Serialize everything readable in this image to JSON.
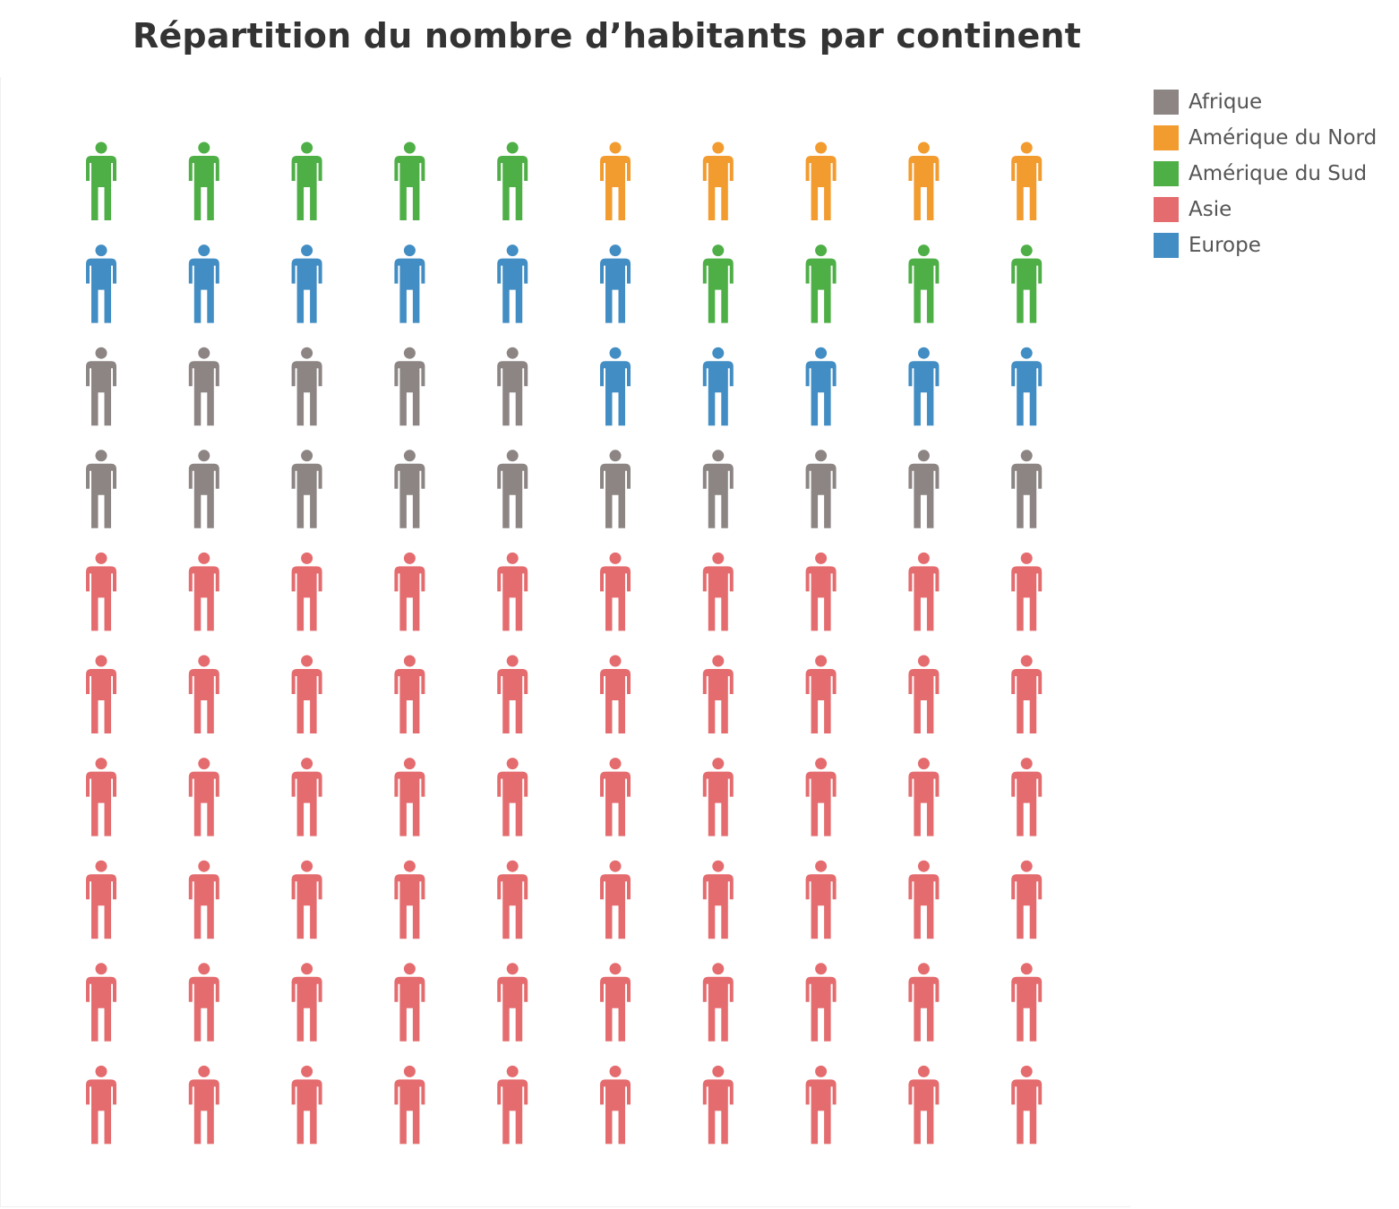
{
  "chart_data": {
    "type": "pictogram",
    "title": "Répartition du nombre d’habitants par continent",
    "unit_icon": "person-icon",
    "grid": {
      "rows": 10,
      "cols": 10
    },
    "legend_position": "top-right",
    "legend": [
      {
        "name": "Afrique",
        "color": "#8c8584"
      },
      {
        "name": "Amérique du Nord",
        "color": "#f29b2f"
      },
      {
        "name": "Amérique du Sud",
        "color": "#4faf47"
      },
      {
        "name": "Asie",
        "color": "#e46c6f"
      },
      {
        "name": "Europe",
        "color": "#428dc3"
      }
    ],
    "series": [
      {
        "name": "Afrique",
        "value": 15
      },
      {
        "name": "Amérique du Nord",
        "value": 5
      },
      {
        "name": "Amérique du Sud",
        "value": 9
      },
      {
        "name": "Asie",
        "value": 60
      },
      {
        "name": "Europe",
        "value": 11
      }
    ],
    "rows": [
      [
        "Amérique du Sud",
        "Amérique du Sud",
        "Amérique du Sud",
        "Amérique du Sud",
        "Amérique du Sud",
        "Amérique du Nord",
        "Amérique du Nord",
        "Amérique du Nord",
        "Amérique du Nord",
        "Amérique du Nord"
      ],
      [
        "Europe",
        "Europe",
        "Europe",
        "Europe",
        "Europe",
        "Europe",
        "Amérique du Sud",
        "Amérique du Sud",
        "Amérique du Sud",
        "Amérique du Sud"
      ],
      [
        "Afrique",
        "Afrique",
        "Afrique",
        "Afrique",
        "Afrique",
        "Europe",
        "Europe",
        "Europe",
        "Europe",
        "Europe"
      ],
      [
        "Afrique",
        "Afrique",
        "Afrique",
        "Afrique",
        "Afrique",
        "Afrique",
        "Afrique",
        "Afrique",
        "Afrique",
        "Afrique"
      ],
      [
        "Asie",
        "Asie",
        "Asie",
        "Asie",
        "Asie",
        "Asie",
        "Asie",
        "Asie",
        "Asie",
        "Asie"
      ],
      [
        "Asie",
        "Asie",
        "Asie",
        "Asie",
        "Asie",
        "Asie",
        "Asie",
        "Asie",
        "Asie",
        "Asie"
      ],
      [
        "Asie",
        "Asie",
        "Asie",
        "Asie",
        "Asie",
        "Asie",
        "Asie",
        "Asie",
        "Asie",
        "Asie"
      ],
      [
        "Asie",
        "Asie",
        "Asie",
        "Asie",
        "Asie",
        "Asie",
        "Asie",
        "Asie",
        "Asie",
        "Asie"
      ],
      [
        "Asie",
        "Asie",
        "Asie",
        "Asie",
        "Asie",
        "Asie",
        "Asie",
        "Asie",
        "Asie",
        "Asie"
      ],
      [
        "Asie",
        "Asie",
        "Asie",
        "Asie",
        "Asie",
        "Asie",
        "Asie",
        "Asie",
        "Asie",
        "Asie"
      ]
    ]
  }
}
